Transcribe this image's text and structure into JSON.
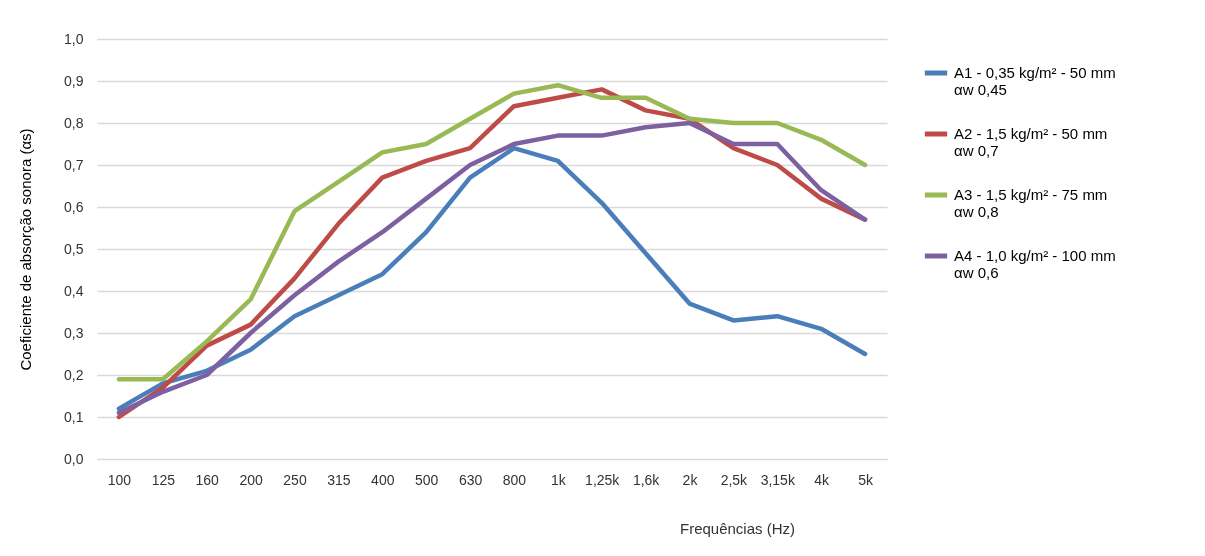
{
  "chart_data": {
    "type": "line",
    "xlabel": "Frequências (Hz)",
    "ylabel": "Coeficiente de absorção sonora (αs)",
    "categories": [
      "100",
      "125",
      "160",
      "200",
      "250",
      "315",
      "400",
      "500",
      "630",
      "800",
      "1k",
      "1,25k",
      "1,6k",
      "2k",
      "2,5k",
      "3,15k",
      "4k",
      "5k"
    ],
    "series": [
      {
        "name": "A1 - 0,35 kg/m² - 50 mm αw 0,45",
        "color": "#4a7ebb",
        "values": [
          0.12,
          0.18,
          0.21,
          0.26,
          0.34,
          0.39,
          0.44,
          0.54,
          0.67,
          0.74,
          0.71,
          0.61,
          0.49,
          0.37,
          0.33,
          0.34,
          0.31,
          0.25
        ]
      },
      {
        "name": "A2 - 1,5 kg/m² - 50 mm αw 0,7",
        "color": "#be4b48",
        "values": [
          0.1,
          0.17,
          0.27,
          0.32,
          0.43,
          0.56,
          0.67,
          0.71,
          0.74,
          0.84,
          0.86,
          0.88,
          0.83,
          0.81,
          0.74,
          0.7,
          0.62,
          0.57
        ]
      },
      {
        "name": "A3 - 1,5 kg/m² - 75 mm αw 0,8",
        "color": "#98b954",
        "values": [
          0.19,
          0.19,
          0.28,
          0.38,
          0.59,
          0.66,
          0.73,
          0.75,
          0.81,
          0.87,
          0.89,
          0.86,
          0.86,
          0.81,
          0.8,
          0.8,
          0.76,
          0.7
        ]
      },
      {
        "name": "A4 - 1,0 kg/m² - 100 mm αw 0,6",
        "color": "#7d60a0",
        "values": [
          0.11,
          0.16,
          0.2,
          0.3,
          0.39,
          0.47,
          0.54,
          0.62,
          0.7,
          0.75,
          0.77,
          0.77,
          0.79,
          0.8,
          0.75,
          0.75,
          0.64,
          0.57
        ]
      }
    ],
    "ylim": [
      0,
      1
    ],
    "yticks": [
      {
        "value": 0,
        "label": "0,0"
      },
      {
        "value": 0.1,
        "label": "0,1"
      },
      {
        "value": 0.2,
        "label": "0,2"
      },
      {
        "value": 0.3,
        "label": "0,3"
      },
      {
        "value": 0.4,
        "label": "0,4"
      },
      {
        "value": 0.5,
        "label": "0,5"
      },
      {
        "value": 0.6,
        "label": "0,6"
      },
      {
        "value": 0.7,
        "label": "0,7"
      },
      {
        "value": 0.8,
        "label": "0,8"
      },
      {
        "value": 0.9,
        "label": "0,9"
      },
      {
        "value": 1,
        "label": "1,0"
      }
    ],
    "grid": "y",
    "legend": "right",
    "marker": "none",
    "line_style": "solid"
  }
}
